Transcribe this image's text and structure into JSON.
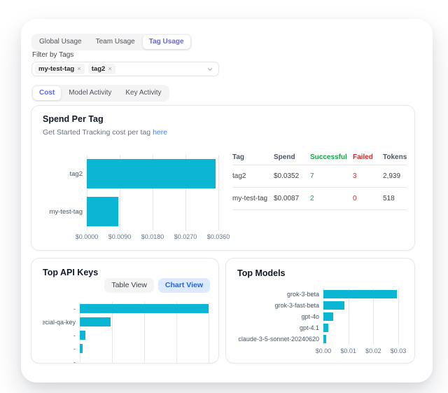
{
  "colors": {
    "accent_cyan": "#0bb5d4",
    "selected_tab_text": "#6366f1",
    "link_blue": "#3b82f6",
    "success_green": "#16a34a",
    "failed_red": "#dc2626",
    "chart_view_bg": "#dbeafe",
    "chart_view_text": "#2563eb"
  },
  "usage_tabs": {
    "items": [
      {
        "label": "Global Usage",
        "selected": false
      },
      {
        "label": "Team Usage",
        "selected": false
      },
      {
        "label": "Tag Usage",
        "selected": true
      }
    ]
  },
  "filter": {
    "label": "Filter by Tags",
    "tags": [
      "my-test-tag",
      "tag2"
    ],
    "remove_glyph": "×"
  },
  "view_tabs": {
    "items": [
      {
        "label": "Cost",
        "selected": true
      },
      {
        "label": "Model Activity",
        "selected": false
      },
      {
        "label": "Key Activity",
        "selected": false
      }
    ]
  },
  "spend_card": {
    "title": "Spend Per Tag",
    "subtitle_text": "Get Started Tracking cost per tag",
    "link_text": "here",
    "chart_data": {
      "type": "bar",
      "orientation": "horizontal",
      "categories": [
        "tag2",
        "my-test-tag"
      ],
      "values": [
        0.0352,
        0.0087
      ],
      "xmax": 0.036,
      "x_tick_labels": [
        "$0.0000",
        "$0.0090",
        "$0.0180",
        "$0.0270",
        "$0.0360"
      ],
      "grid": true,
      "bar_color": "#0bb5d4"
    },
    "table": {
      "columns": [
        "Tag",
        "Spend",
        "Successful",
        "Failed",
        "Tokens"
      ],
      "rows": [
        {
          "tag": "tag2",
          "spend": "$0.0352",
          "successful": "7",
          "failed": "3",
          "tokens": "2,939"
        },
        {
          "tag": "my-test-tag",
          "spend": "$0.0087",
          "successful": "2",
          "failed": "0",
          "tokens": "518"
        }
      ]
    }
  },
  "keys_card": {
    "title": "Top API Keys",
    "buttons": {
      "table_view": "Table View",
      "chart_view": "Chart View"
    },
    "chart_data": {
      "type": "bar",
      "orientation": "horizontal",
      "categories": [
        "-",
        "special-qa-key",
        "-",
        "-",
        "-"
      ],
      "relative_values": [
        1,
        0.24,
        0.045,
        0.02,
        0
      ],
      "xmax": 1,
      "x_axis_visible": false,
      "grid": true,
      "bar_color": "#0bb5d4"
    }
  },
  "models_card": {
    "title": "Top Models",
    "chart_data": {
      "type": "bar",
      "orientation": "horizontal",
      "categories": [
        "grok-3-beta",
        "grok-3-fast-beta",
        "gpt-4o",
        "gpt-4.1",
        "claude-3-5-sonnet-20240620"
      ],
      "values": [
        0.0295,
        0.0085,
        0.004,
        0.002,
        0.001
      ],
      "xmax": 0.03,
      "x_tick_labels": [
        "$0.00",
        "$0.01",
        "$0.02",
        "$0.03"
      ],
      "grid": true,
      "bar_color": "#0bb5d4"
    }
  }
}
